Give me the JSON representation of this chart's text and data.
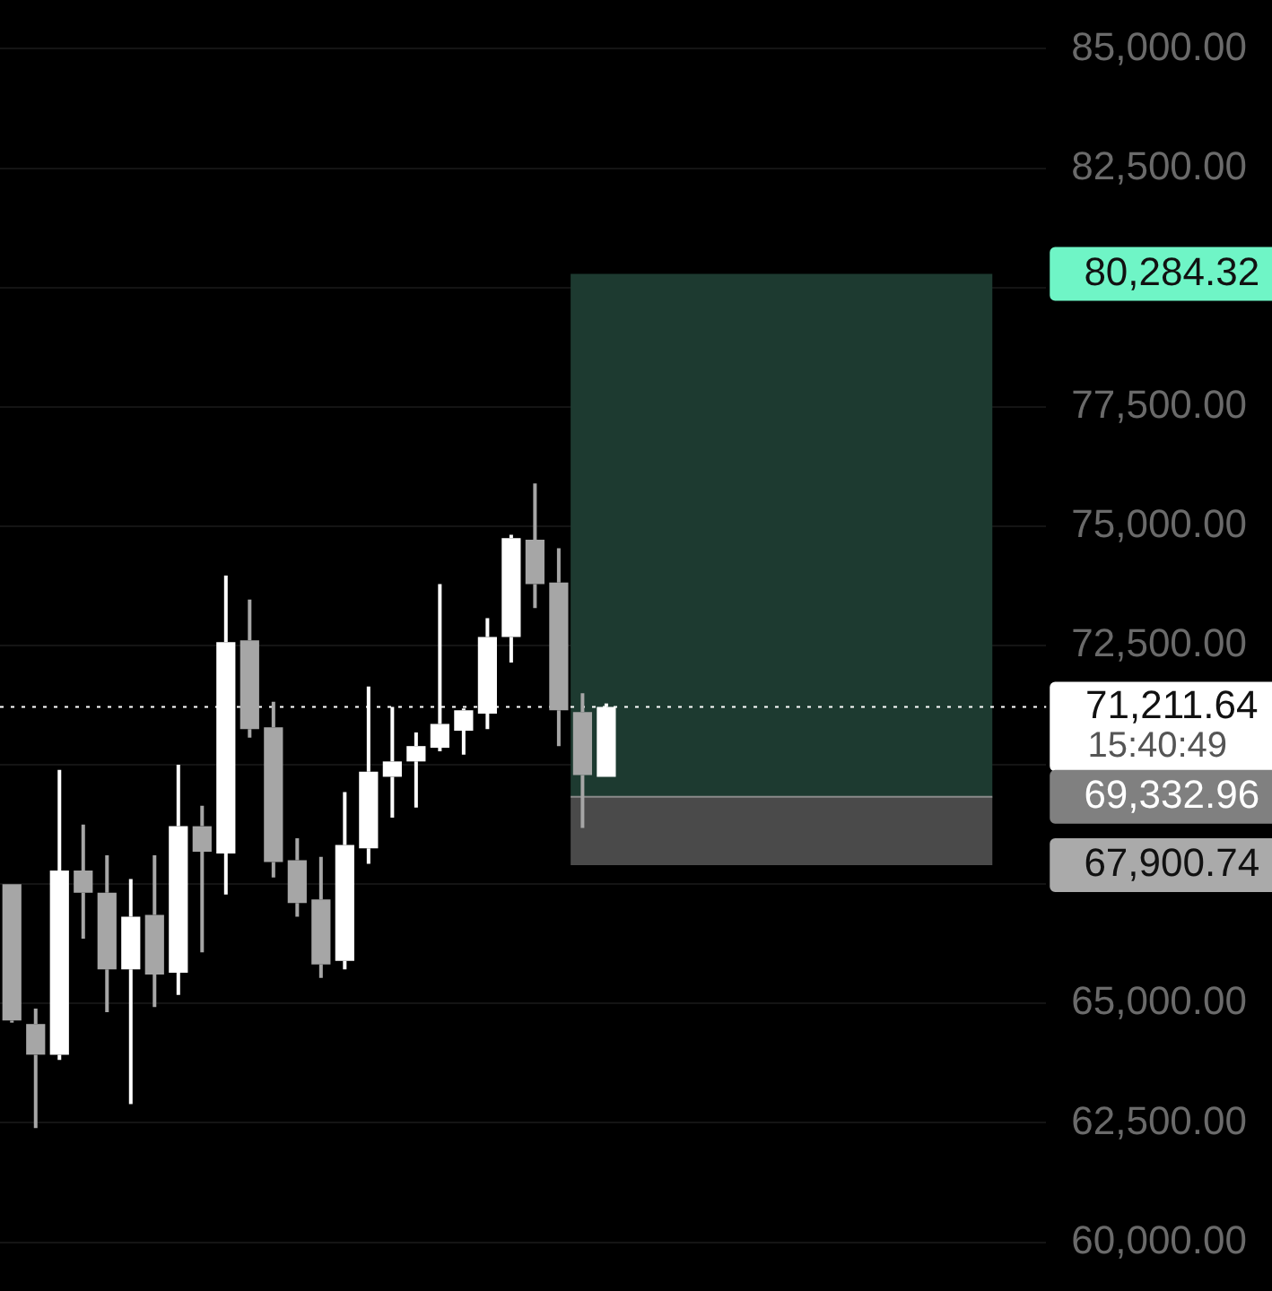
{
  "chart_data": {
    "type": "candlestick",
    "categories": [
      null,
      null,
      null,
      null,
      null,
      null,
      null,
      null,
      null,
      null,
      null,
      null,
      null,
      null,
      null,
      null,
      null,
      null,
      null,
      null,
      null,
      null,
      null,
      null,
      null,
      null,
      null,
      null,
      null,
      null,
      null,
      null,
      null,
      null,
      null,
      null,
      null,
      null,
      null,
      null,
      null,
      null,
      null,
      null
    ],
    "ohlc": [
      [
        67500,
        67500,
        64600,
        64643
      ],
      [
        64571,
        64893,
        62393,
        63929
      ],
      [
        63929,
        69893,
        63821,
        67786
      ],
      [
        67786,
        68750,
        66357,
        67321
      ],
      [
        67321,
        68107,
        64821,
        65714
      ],
      [
        65714,
        67607,
        62893,
        66821
      ],
      [
        66857,
        68107,
        64929,
        65607
      ],
      [
        65643,
        70000,
        65179,
        68714
      ],
      [
        68714,
        69143,
        66071,
        68179
      ],
      [
        68143,
        73964,
        67286,
        72571
      ],
      [
        72607,
        73464,
        70571,
        70750
      ],
      [
        70786,
        71321,
        67643,
        67964
      ],
      [
        68000,
        68464,
        66821,
        67107
      ],
      [
        67179,
        68071,
        65536,
        65821
      ],
      [
        65893,
        69429,
        65714,
        68321
      ],
      [
        68250,
        71643,
        67929,
        69857
      ],
      [
        69750,
        71214,
        68893,
        70071
      ],
      [
        70071,
        70679,
        69107,
        70393
      ],
      [
        70357,
        73786,
        70286,
        70857
      ],
      [
        70714,
        71179,
        70214,
        71143
      ],
      [
        71071,
        73071,
        70750,
        72679
      ],
      [
        72679,
        74821,
        72143,
        74750
      ],
      [
        74714,
        75893,
        73286,
        73786
      ],
      [
        73821,
        74536,
        70393,
        71143
      ],
      [
        71107,
        71500,
        68679,
        69786
      ],
      [
        69750,
        71286,
        69750,
        71211.64
      ],
      null,
      null,
      null,
      null,
      null,
      null,
      null,
      null,
      null,
      null,
      null,
      null,
      null,
      null,
      null,
      null,
      null,
      null
    ],
    "colors": [
      "#a6a6a6",
      "#a6a6a6",
      "#ffffff",
      "#a6a6a6",
      "#a6a6a6",
      "#ffffff",
      "#a6a6a6",
      "#ffffff",
      "#a6a6a6",
      "#ffffff",
      "#a6a6a6",
      "#a6a6a6",
      "#a6a6a6",
      "#a6a6a6",
      "#ffffff",
      "#ffffff",
      "#ffffff",
      "#ffffff",
      "#ffffff",
      "#ffffff",
      "#ffffff",
      "#ffffff",
      "#a6a6a6",
      "#a6a6a6",
      "#a6a6a6",
      "#ffffff",
      null,
      null,
      null,
      null,
      null,
      null,
      null,
      null,
      null,
      null,
      null,
      null,
      null,
      null,
      null,
      null,
      null,
      null
    ],
    "ylim": [
      60000,
      85000
    ],
    "yticks": [
      {
        "value": 60000,
        "label": "60,000.00"
      },
      {
        "value": 62500,
        "label": "62,500.00"
      },
      {
        "value": 65000,
        "label": "65,000.00"
      },
      {
        "value": 67500,
        "label": null
      },
      {
        "value": 70000,
        "label": null
      },
      {
        "value": 72500,
        "label": "72,500.00"
      },
      {
        "value": 75000,
        "label": "75,000.00"
      },
      {
        "value": 77500,
        "label": "77,500.00"
      },
      {
        "value": 80000,
        "label": null
      },
      {
        "value": 82500,
        "label": "82,500.00"
      },
      {
        "value": 85000,
        "label": "85,000.00"
      }
    ],
    "grid": "y",
    "bands": [
      {
        "axis": "y",
        "from": 69332.96,
        "to": 80284.32,
        "label": "80,284.32",
        "color": "#1d3a30"
      },
      {
        "axis": "y",
        "from": 67900.74,
        "to": 69332.96,
        "label": "67,900.74",
        "color": "#4a4a4a"
      }
    ],
    "ref_lines": [
      {
        "axis": "y",
        "value": 71211.64,
        "label": "71,211.64",
        "line_style": "dotted",
        "color": "#ffffff"
      },
      {
        "axis": "y",
        "value": 69332.96,
        "label": "69,332.96",
        "color": "#8a8a8a"
      }
    ],
    "annotations": [
      "15:40:49"
    ]
  }
}
